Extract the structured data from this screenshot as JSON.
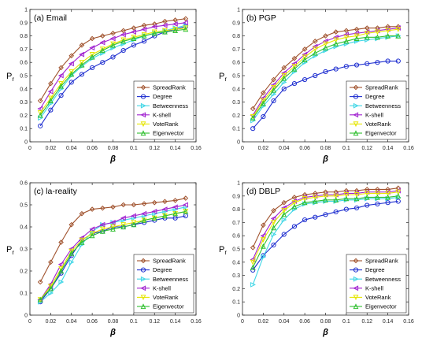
{
  "colors": {
    "SpreadRank": "#a0522d",
    "Degree": "#1f2fd0",
    "Betweenness": "#3fd6e6",
    "K-shell": "#a020d0",
    "VoteRank": "#e6e600",
    "Eigenvector": "#30c030"
  },
  "chart_data": [
    {
      "type": "line",
      "title": "(a) Email",
      "xlabel": "β",
      "ylabel": "P_r",
      "xlim": [
        0,
        0.16
      ],
      "ylim": [
        0,
        1
      ],
      "xticks": [
        "0",
        "0.02",
        "0.04",
        "0.06",
        "0.08",
        "0.1",
        "0.12",
        "0.14",
        "0.16"
      ],
      "yticks": [
        "0",
        "0.1",
        "0.2",
        "0.3",
        "0.4",
        "0.5",
        "0.6",
        "0.7",
        "0.8",
        "0.9",
        "1"
      ],
      "legend_position": "bottom-right",
      "x": [
        0.01,
        0.02,
        0.03,
        0.04,
        0.05,
        0.06,
        0.07,
        0.08,
        0.09,
        0.1,
        0.11,
        0.12,
        0.13,
        0.14,
        0.15
      ],
      "series": [
        {
          "name": "SpreadRank",
          "values": [
            0.31,
            0.44,
            0.56,
            0.65,
            0.73,
            0.78,
            0.8,
            0.82,
            0.84,
            0.86,
            0.88,
            0.89,
            0.91,
            0.92,
            0.93
          ]
        },
        {
          "name": "Degree",
          "values": [
            0.12,
            0.24,
            0.35,
            0.45,
            0.51,
            0.56,
            0.6,
            0.64,
            0.69,
            0.73,
            0.76,
            0.8,
            0.83,
            0.85,
            0.87
          ]
        },
        {
          "name": "Betweenness",
          "values": [
            0.18,
            0.29,
            0.4,
            0.5,
            0.57,
            0.63,
            0.67,
            0.71,
            0.74,
            0.77,
            0.8,
            0.82,
            0.84,
            0.86,
            0.88
          ]
        },
        {
          "name": "K-shell",
          "values": [
            0.25,
            0.38,
            0.5,
            0.59,
            0.66,
            0.71,
            0.75,
            0.78,
            0.81,
            0.83,
            0.85,
            0.87,
            0.88,
            0.89,
            0.9
          ]
        },
        {
          "name": "VoteRank",
          "values": [
            0.22,
            0.33,
            0.44,
            0.53,
            0.6,
            0.66,
            0.7,
            0.74,
            0.77,
            0.79,
            0.81,
            0.83,
            0.84,
            0.85,
            0.86
          ]
        },
        {
          "name": "Eigenvector",
          "values": [
            0.2,
            0.31,
            0.42,
            0.51,
            0.58,
            0.64,
            0.69,
            0.73,
            0.76,
            0.78,
            0.8,
            0.82,
            0.83,
            0.84,
            0.85
          ]
        }
      ]
    },
    {
      "type": "line",
      "title": "(b) PGP",
      "xlabel": "β",
      "ylabel": "P_r",
      "xlim": [
        0,
        0.16
      ],
      "ylim": [
        0,
        1
      ],
      "xticks": [
        "0",
        "0.02",
        "0.04",
        "0.06",
        "0.08",
        "0.1",
        "0.12",
        "0.14",
        "0.16"
      ],
      "yticks": [
        "0",
        "0.1",
        "0.2",
        "0.3",
        "0.4",
        "0.5",
        "0.6",
        "0.7",
        "0.8",
        "0.9",
        "1"
      ],
      "legend_position": "bottom-right",
      "x": [
        0.01,
        0.02,
        0.03,
        0.04,
        0.05,
        0.06,
        0.07,
        0.08,
        0.09,
        0.1,
        0.11,
        0.12,
        0.13,
        0.14,
        0.15
      ],
      "series": [
        {
          "name": "SpreadRank",
          "values": [
            0.25,
            0.37,
            0.47,
            0.56,
            0.63,
            0.7,
            0.76,
            0.8,
            0.83,
            0.84,
            0.85,
            0.86,
            0.86,
            0.87,
            0.87
          ]
        },
        {
          "name": "Degree",
          "values": [
            0.1,
            0.19,
            0.31,
            0.4,
            0.44,
            0.47,
            0.5,
            0.53,
            0.55,
            0.57,
            0.58,
            0.59,
            0.6,
            0.61,
            0.61
          ]
        },
        {
          "name": "Betweenness",
          "values": [
            0.16,
            0.27,
            0.36,
            0.45,
            0.53,
            0.6,
            0.65,
            0.69,
            0.72,
            0.74,
            0.76,
            0.77,
            0.78,
            0.79,
            0.8
          ]
        },
        {
          "name": "K-shell",
          "values": [
            0.2,
            0.33,
            0.43,
            0.52,
            0.59,
            0.66,
            0.72,
            0.76,
            0.79,
            0.81,
            0.82,
            0.83,
            0.84,
            0.85,
            0.86
          ]
        },
        {
          "name": "VoteRank",
          "values": [
            0.19,
            0.31,
            0.41,
            0.5,
            0.57,
            0.64,
            0.7,
            0.74,
            0.77,
            0.79,
            0.8,
            0.82,
            0.83,
            0.84,
            0.85
          ]
        },
        {
          "name": "Eigenvector",
          "values": [
            0.18,
            0.29,
            0.39,
            0.48,
            0.55,
            0.62,
            0.67,
            0.71,
            0.74,
            0.76,
            0.78,
            0.79,
            0.79,
            0.8,
            0.8
          ]
        }
      ]
    },
    {
      "type": "line",
      "title": "(c) la-reality",
      "xlabel": "β",
      "ylabel": "P_r",
      "xlim": [
        0,
        0.16
      ],
      "ylim": [
        0,
        0.6
      ],
      "xticks": [
        "0",
        "0.02",
        "0.04",
        "0.06",
        "0.08",
        "0.1",
        "0.12",
        "0.14",
        "0.16"
      ],
      "yticks": [
        "0",
        "0.1",
        "0.2",
        "0.3",
        "0.4",
        "0.5",
        "0.6"
      ],
      "legend_position": "bottom-right",
      "x": [
        0.01,
        0.02,
        0.03,
        0.04,
        0.05,
        0.06,
        0.07,
        0.08,
        0.09,
        0.1,
        0.11,
        0.12,
        0.13,
        0.14,
        0.15
      ],
      "series": [
        {
          "name": "SpreadRank",
          "values": [
            0.15,
            0.24,
            0.33,
            0.41,
            0.46,
            0.48,
            0.485,
            0.49,
            0.5,
            0.5,
            0.505,
            0.51,
            0.515,
            0.52,
            0.53
          ]
        },
        {
          "name": "Degree",
          "values": [
            0.06,
            0.12,
            0.19,
            0.27,
            0.34,
            0.37,
            0.38,
            0.4,
            0.4,
            0.41,
            0.42,
            0.43,
            0.44,
            0.44,
            0.45
          ]
        },
        {
          "name": "Betweenness",
          "values": [
            0.06,
            0.1,
            0.15,
            0.24,
            0.32,
            0.38,
            0.41,
            0.42,
            0.43,
            0.44,
            0.45,
            0.46,
            0.47,
            0.48,
            0.49
          ]
        },
        {
          "name": "K-shell",
          "values": [
            0.07,
            0.14,
            0.23,
            0.3,
            0.35,
            0.39,
            0.41,
            0.42,
            0.44,
            0.45,
            0.46,
            0.47,
            0.48,
            0.49,
            0.5
          ]
        },
        {
          "name": "VoteRank",
          "values": [
            0.07,
            0.13,
            0.21,
            0.29,
            0.34,
            0.37,
            0.39,
            0.4,
            0.41,
            0.42,
            0.43,
            0.44,
            0.45,
            0.46,
            0.47
          ]
        },
        {
          "name": "Eigenvector",
          "values": [
            0.07,
            0.12,
            0.2,
            0.28,
            0.33,
            0.36,
            0.38,
            0.39,
            0.4,
            0.41,
            0.43,
            0.44,
            0.45,
            0.46,
            0.47
          ]
        }
      ]
    },
    {
      "type": "line",
      "title": "(d) DBLP",
      "xlabel": "β",
      "ylabel": "P_r",
      "xlim": [
        0,
        0.16
      ],
      "ylim": [
        0,
        1
      ],
      "xticks": [
        "0",
        "0.02",
        "0.04",
        "0.06",
        "0.08",
        "0.1",
        "0.12",
        "0.14",
        "0.16"
      ],
      "yticks": [
        "0",
        "0.1",
        "0.2",
        "0.3",
        "0.4",
        "0.5",
        "0.6",
        "0.7",
        "0.8",
        "0.9",
        "1"
      ],
      "legend_position": "bottom-right",
      "x": [
        0.01,
        0.02,
        0.03,
        0.04,
        0.05,
        0.06,
        0.07,
        0.08,
        0.09,
        0.1,
        0.11,
        0.12,
        0.13,
        0.14,
        0.15
      ],
      "series": [
        {
          "name": "SpreadRank",
          "values": [
            0.51,
            0.68,
            0.79,
            0.85,
            0.89,
            0.91,
            0.92,
            0.93,
            0.93,
            0.94,
            0.94,
            0.95,
            0.95,
            0.95,
            0.96
          ]
        },
        {
          "name": "Degree",
          "values": [
            0.34,
            0.45,
            0.53,
            0.61,
            0.67,
            0.72,
            0.74,
            0.76,
            0.78,
            0.8,
            0.81,
            0.83,
            0.84,
            0.85,
            0.86
          ]
        },
        {
          "name": "Betweenness",
          "values": [
            0.23,
            0.44,
            0.61,
            0.72,
            0.8,
            0.84,
            0.85,
            0.86,
            0.86,
            0.87,
            0.87,
            0.88,
            0.88,
            0.88,
            0.89
          ]
        },
        {
          "name": "K-shell",
          "values": [
            0.42,
            0.6,
            0.73,
            0.81,
            0.86,
            0.89,
            0.9,
            0.91,
            0.91,
            0.92,
            0.92,
            0.93,
            0.93,
            0.93,
            0.94
          ]
        },
        {
          "name": "VoteRank",
          "values": [
            0.4,
            0.57,
            0.7,
            0.79,
            0.85,
            0.88,
            0.89,
            0.9,
            0.9,
            0.91,
            0.91,
            0.92,
            0.92,
            0.92,
            0.93
          ]
        },
        {
          "name": "Eigenvector",
          "values": [
            0.36,
            0.52,
            0.66,
            0.76,
            0.82,
            0.85,
            0.86,
            0.87,
            0.87,
            0.88,
            0.88,
            0.89,
            0.89,
            0.89,
            0.9
          ]
        }
      ]
    }
  ]
}
